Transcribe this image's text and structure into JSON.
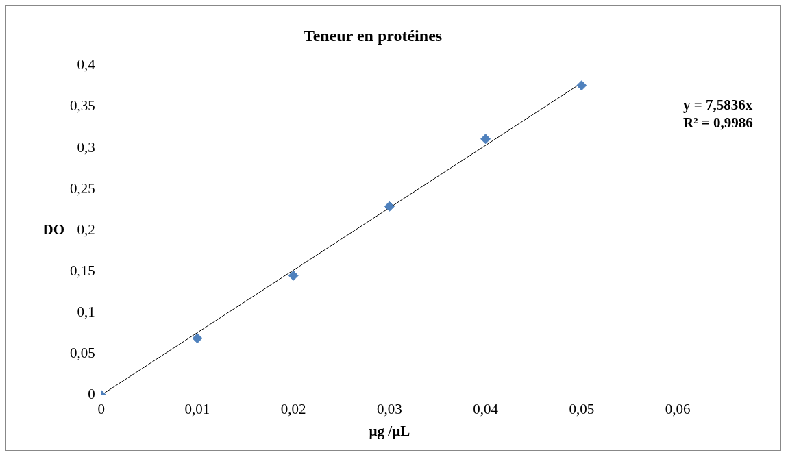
{
  "chart_data": {
    "type": "scatter",
    "title": "Teneur en protéines",
    "xlabel": "µg /µL",
    "ylabel": "DO",
    "series": [
      {
        "color": "#4f81bd",
        "marker": "diamond",
        "x": [
          0,
          0.01,
          0.02,
          0.03,
          0.04,
          0.05
        ],
        "values": [
          0,
          0.069,
          0.145,
          0.229,
          0.311,
          0.376
        ]
      },
      {
        "type": "line",
        "color": "#000000",
        "marker": "none",
        "line_style": "solid",
        "x": [
          0,
          0.05
        ],
        "values": [
          0,
          0.379
        ]
      }
    ],
    "xlim": [
      0,
      0.06
    ],
    "xticks": [
      0,
      {
        "value": 0.01,
        "label": "0,01"
      },
      {
        "value": 0.02,
        "label": "0,02"
      },
      {
        "value": 0.03,
        "label": "0,03"
      },
      {
        "value": 0.04,
        "label": "0,04"
      },
      {
        "value": 0.05,
        "label": "0,05"
      },
      {
        "value": 0.06,
        "label": "0,06"
      }
    ],
    "ylim": [
      0,
      0.4
    ],
    "yticks": [
      0,
      {
        "value": 0.05,
        "label": "0,05"
      },
      {
        "value": 0.1,
        "label": "0,1"
      },
      {
        "value": 0.15,
        "label": "0,15"
      },
      {
        "value": 0.2,
        "label": "0,2"
      },
      {
        "value": 0.25,
        "label": "0,25"
      },
      {
        "value": 0.3,
        "label": "0,3"
      },
      {
        "value": 0.35,
        "label": "0,35"
      },
      {
        "value": 0.4,
        "label": "0,4"
      }
    ],
    "annotations": [
      "y = 7,5836x",
      "R² = 0,9986"
    ],
    "grid": false,
    "legend": false
  }
}
